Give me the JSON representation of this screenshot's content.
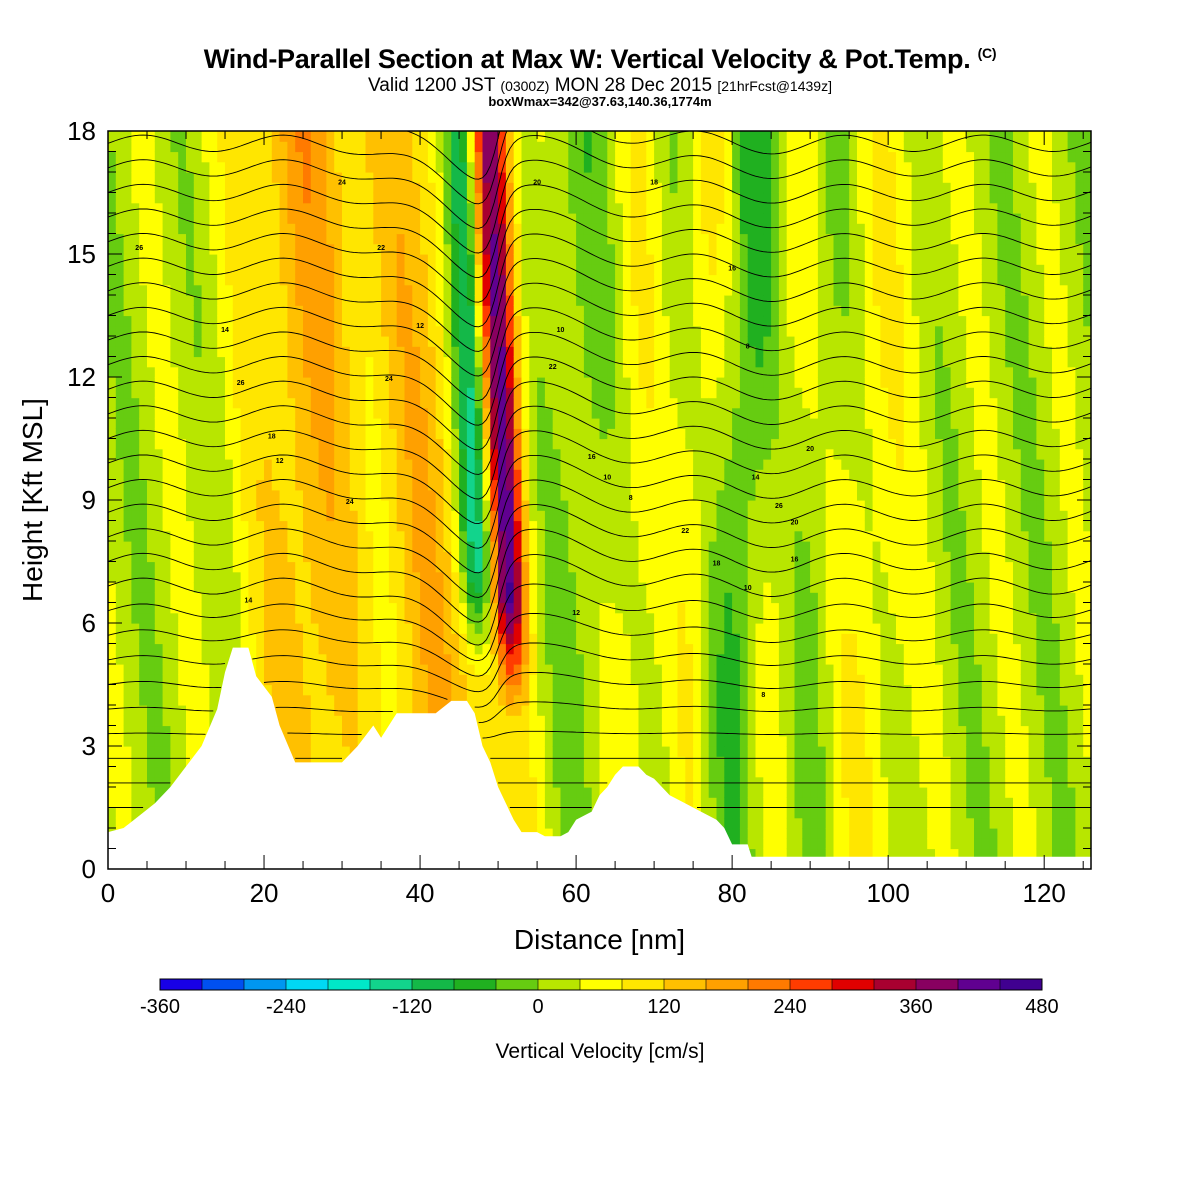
{
  "title": {
    "main": "Wind-Parallel Section at Max W: Vertical Velocity & Pot.Temp.",
    "copyright": "(C)",
    "valid_prefix": "Valid 1200 JST",
    "valid_utc": "(0300Z)",
    "valid_date": "MON 28 Dec 2015",
    "forecast": "[21hrFcst@1439z]",
    "box_info": "boxWmax=342@37.63,140.36,1774m"
  },
  "chart_data": {
    "type": "heatmap",
    "xlabel": "Distance [nm]",
    "ylabel": "Height [Kft MSL]",
    "xlim": [
      0,
      126
    ],
    "ylim": [
      0,
      18
    ],
    "x_ticks": [
      0,
      20,
      40,
      60,
      80,
      100,
      120
    ],
    "y_ticks": [
      0,
      3,
      6,
      9,
      12,
      15,
      18
    ],
    "colorbar": {
      "label": "Vertical Velocity [cm/s]",
      "min": -360,
      "max": 480,
      "step": 40,
      "tick_labels": [
        "-360",
        "-240",
        "-120",
        "0",
        "120",
        "240",
        "360",
        "480"
      ],
      "colors": [
        "#1800e6",
        "#0050f0",
        "#0096f0",
        "#00d8f4",
        "#00e8c8",
        "#12d48c",
        "#14b848",
        "#20b020",
        "#66cc11",
        "#b8e600",
        "#ffff00",
        "#ffe600",
        "#ffc000",
        "#ffa000",
        "#ff7a00",
        "#ff3c00",
        "#e00000",
        "#a80030",
        "#880060",
        "#600090",
        "#400090"
      ]
    },
    "terrain_kft": [
      [
        0,
        0.9
      ],
      [
        2,
        1.0
      ],
      [
        4,
        1.3
      ],
      [
        6,
        1.6
      ],
      [
        8,
        2.0
      ],
      [
        10,
        2.5
      ],
      [
        12,
        3.0
      ],
      [
        14,
        3.9
      ],
      [
        15,
        4.8
      ],
      [
        16,
        5.4
      ],
      [
        18,
        5.4
      ],
      [
        19,
        4.7
      ],
      [
        21,
        4.2
      ],
      [
        22,
        3.5
      ],
      [
        24,
        2.6
      ],
      [
        28,
        2.6
      ],
      [
        30,
        2.6
      ],
      [
        31,
        2.8
      ],
      [
        32,
        3.0
      ],
      [
        34,
        3.5
      ],
      [
        35,
        3.2
      ],
      [
        36,
        3.5
      ],
      [
        37,
        3.8
      ],
      [
        40,
        3.8
      ],
      [
        42,
        3.8
      ],
      [
        44,
        4.1
      ],
      [
        46,
        4.1
      ],
      [
        47,
        3.8
      ],
      [
        48,
        3.0
      ],
      [
        49,
        2.6
      ],
      [
        50,
        2.0
      ],
      [
        51,
        1.6
      ],
      [
        52,
        1.2
      ],
      [
        53,
        0.9
      ],
      [
        55,
        0.9
      ],
      [
        56,
        0.8
      ],
      [
        58,
        0.8
      ],
      [
        59,
        0.9
      ],
      [
        60,
        1.2
      ],
      [
        62,
        1.4
      ],
      [
        63,
        1.8
      ],
      [
        64,
        2.0
      ],
      [
        65,
        2.3
      ],
      [
        66,
        2.5
      ],
      [
        68,
        2.5
      ],
      [
        69,
        2.3
      ],
      [
        70,
        2.2
      ],
      [
        72,
        1.8
      ],
      [
        74,
        1.6
      ],
      [
        76,
        1.4
      ],
      [
        78,
        1.2
      ],
      [
        79,
        1.0
      ],
      [
        80,
        0.6
      ],
      [
        82,
        0.6
      ],
      [
        82.5,
        0.3
      ],
      [
        126,
        0.3
      ]
    ],
    "theta_labels": [
      "8",
      "10",
      "12",
      "14",
      "16",
      "18",
      "20",
      "22",
      "24",
      "26"
    ]
  },
  "colors": {
    "background": "#ffffff",
    "terrain": "#ffffff",
    "contour": "#000000"
  }
}
